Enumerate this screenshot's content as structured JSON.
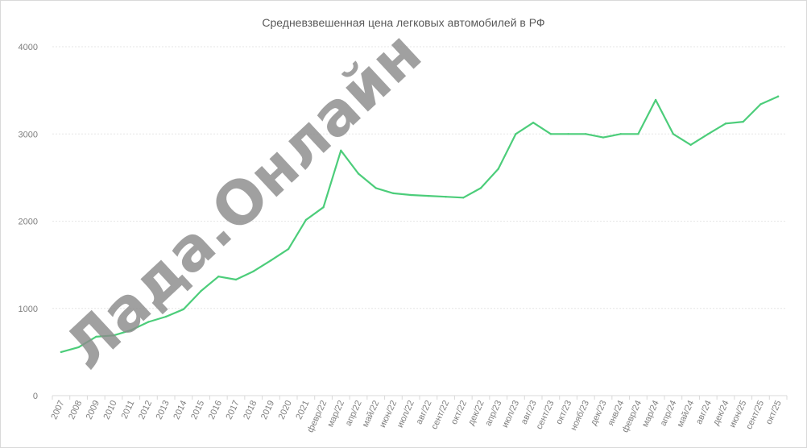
{
  "chart_data": {
    "type": "line",
    "title": "Средневзвешенная цена легковых автомобилей в РФ",
    "xlabel": "",
    "ylabel": "",
    "ylim": [
      0,
      4000
    ],
    "yticks": [
      0,
      1000,
      2000,
      3000,
      4000
    ],
    "grid": true,
    "categories": [
      "2007",
      "2008",
      "2009",
      "2010",
      "2011",
      "2012",
      "2013",
      "2014",
      "2015",
      "2016",
      "2017",
      "2018",
      "2019",
      "2020",
      "2021",
      "февр/22",
      "мар/22",
      "апр/22",
      "май/22",
      "июн/22",
      "июл/22",
      "авг/22",
      "сент/22",
      "окт/22",
      "дек/22",
      "апр/23",
      "июл/23",
      "авг/23",
      "сент/23",
      "окт/23",
      "нояб/23",
      "дек/23",
      "янв/24",
      "февр/24",
      "мар/24",
      "апр/24",
      "май/24",
      "авг/24",
      "дек/24",
      "июн/25",
      "сент/25",
      "окт/25"
    ],
    "series": [
      {
        "color": "#4ccd7a",
        "values": [
          500,
          555,
          675,
          690,
          750,
          845,
          905,
          990,
          1200,
          1365,
          1330,
          1425,
          1550,
          1680,
          2015,
          2160,
          2810,
          2545,
          2380,
          2320,
          2300,
          2290,
          2280,
          2270,
          2380,
          2600,
          3000,
          3130,
          3000,
          3000,
          3000,
          2960,
          3000,
          3000,
          3390,
          3000,
          2875,
          3000,
          3120,
          3140,
          3340,
          3430
        ]
      }
    ]
  },
  "watermark": "Лада.Онлайн"
}
